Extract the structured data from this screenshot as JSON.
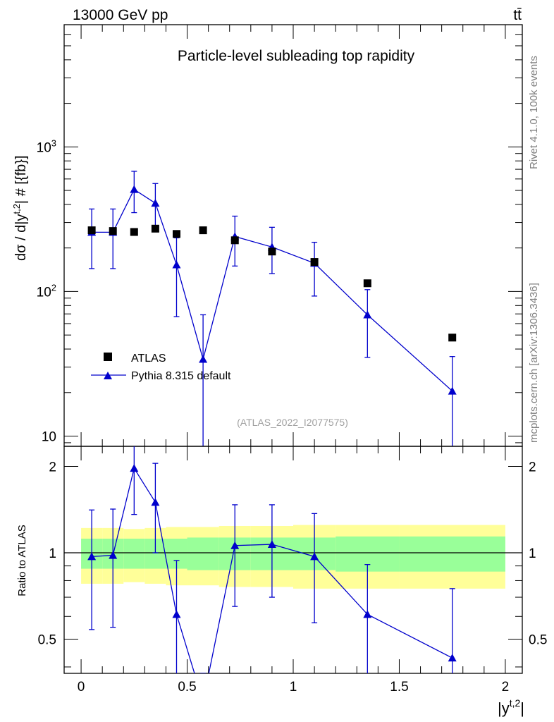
{
  "header": {
    "left": "13000 GeV pp",
    "right": "tt̄"
  },
  "side": {
    "rivet": "Rivet 4.1.0,  100k events",
    "mcplots": "mcplots.cern.ch [arXiv:1306.3436]"
  },
  "chart_data": {
    "type": "scatter",
    "title": "Particle-level subleading top rapidity",
    "watermark": "(ATLAS_2022_I2077575)",
    "xlabel": "|y^{t,2}|",
    "ylabel": "dσ / d|y^{t,2}| # [{fb}]",
    "ratio_ylabel": "Ratio to ATLAS",
    "xlim": [
      -0.08,
      2.08
    ],
    "ylim_log": [
      8.5,
      7000
    ],
    "ratio_ylim": [
      0.38,
      2.35
    ],
    "x_ticks": [
      "0",
      "0.5",
      "1",
      "1.5",
      "2"
    ],
    "y_ticks": [
      "10",
      "10^2",
      "10^3"
    ],
    "ratio_ticks": [
      "0.5",
      "1",
      "2"
    ],
    "legend": {
      "position": "lower-left",
      "entries": [
        "ATLAS",
        "Pythia 8.315 default"
      ]
    },
    "bins": [
      [
        0.0,
        0.1
      ],
      [
        0.1,
        0.2
      ],
      [
        0.2,
        0.3
      ],
      [
        0.3,
        0.4
      ],
      [
        0.4,
        0.5
      ],
      [
        0.5,
        0.65
      ],
      [
        0.65,
        0.8
      ],
      [
        0.8,
        1.0
      ],
      [
        1.0,
        1.2
      ],
      [
        1.2,
        1.5
      ],
      [
        1.5,
        2.0
      ]
    ],
    "atlas": {
      "name": "ATLAS",
      "x": [
        0.05,
        0.15,
        0.25,
        0.35,
        0.45,
        0.575,
        0.725,
        0.9,
        1.1,
        1.35,
        1.75
      ],
      "y": [
        265,
        262,
        258,
        272,
        250,
        265,
        226,
        189,
        160,
        114,
        48
      ],
      "band_inner": [
        0.12,
        0.12,
        0.12,
        0.12,
        0.12,
        0.13,
        0.13,
        0.13,
        0.13,
        0.14,
        0.14
      ],
      "band_outer": [
        0.22,
        0.22,
        0.21,
        0.22,
        0.23,
        0.23,
        0.24,
        0.24,
        0.25,
        0.25,
        0.25
      ]
    },
    "pythia": {
      "name": "Pythia 8.315 default",
      "color": "#0000cc",
      "x": [
        0.05,
        0.15,
        0.25,
        0.35,
        0.45,
        0.575,
        0.725,
        0.9,
        1.1,
        1.35,
        1.75
      ],
      "y": [
        257,
        257,
        508,
        408,
        153,
        34,
        240,
        203,
        157,
        69,
        20.5
      ],
      "y_err_low": [
        113,
        113,
        157,
        135,
        86,
        30,
        90,
        70,
        64,
        34,
        20.5
      ],
      "y_err_high": [
        115,
        115,
        170,
        150,
        82,
        35,
        92,
        75,
        62,
        34,
        15
      ],
      "ratio": [
        0.97,
        0.98,
        1.97,
        1.5,
        0.61,
        0.13,
        1.06,
        1.07,
        0.97,
        0.61,
        0.43
      ],
      "ratio_err_low": [
        0.43,
        0.43,
        0.61,
        0.5,
        0.35,
        0.12,
        0.41,
        0.37,
        0.4,
        0.3,
        0.43
      ],
      "ratio_err_high": [
        0.44,
        0.44,
        0.66,
        0.55,
        0.33,
        0.13,
        0.41,
        0.4,
        0.4,
        0.3,
        0.32
      ]
    }
  }
}
